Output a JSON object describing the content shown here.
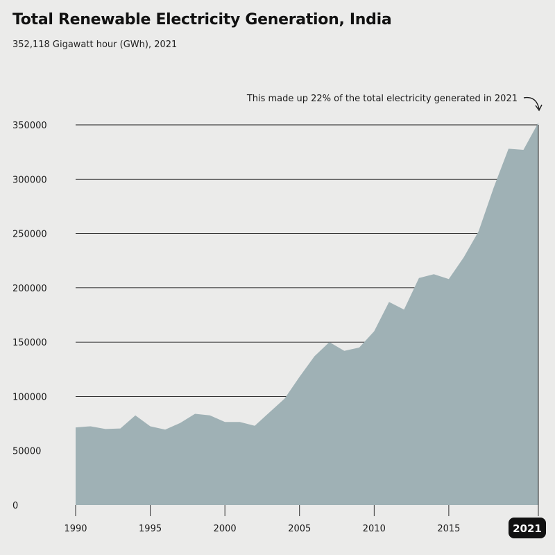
{
  "title": "Total Renewable Electricity Generation, India",
  "subtitle": "352,118 Gigawatt hour (GWh), 2021",
  "annotation": "This made up 22% of the total electricity generated in 2021",
  "highlight_label": "2021",
  "colors": {
    "background": "#ebebea",
    "area": "#9fb1b5",
    "gridline": "#1a1a1a",
    "badge": "#111111"
  },
  "chart_data": {
    "type": "area",
    "x": [
      1990,
      1991,
      1992,
      1993,
      1994,
      1995,
      1996,
      1997,
      1998,
      1999,
      2000,
      2001,
      2002,
      2003,
      2004,
      2005,
      2006,
      2007,
      2008,
      2009,
      2010,
      2011,
      2012,
      2013,
      2014,
      2015,
      2016,
      2017,
      2018,
      2019,
      2020,
      2021
    ],
    "series": [
      {
        "values": [
          71500,
          72500,
          70000,
          70500,
          82500,
          72500,
          69500,
          75500,
          84000,
          82500,
          76500,
          76500,
          73000,
          85500,
          98000,
          118000,
          137000,
          150000,
          142000,
          145000,
          160000,
          187000,
          180000,
          209000,
          212500,
          208000,
          228000,
          252000,
          292000,
          328000,
          327000,
          352118
        ]
      }
    ],
    "ylim": [
      0,
      350000
    ],
    "yticks": [
      0,
      50000,
      100000,
      150000,
      200000,
      250000,
      300000,
      350000
    ],
    "xticks": [
      1990,
      1995,
      2000,
      2005,
      2010,
      2015
    ],
    "grid": true,
    "xlabel": "",
    "ylabel": ""
  }
}
